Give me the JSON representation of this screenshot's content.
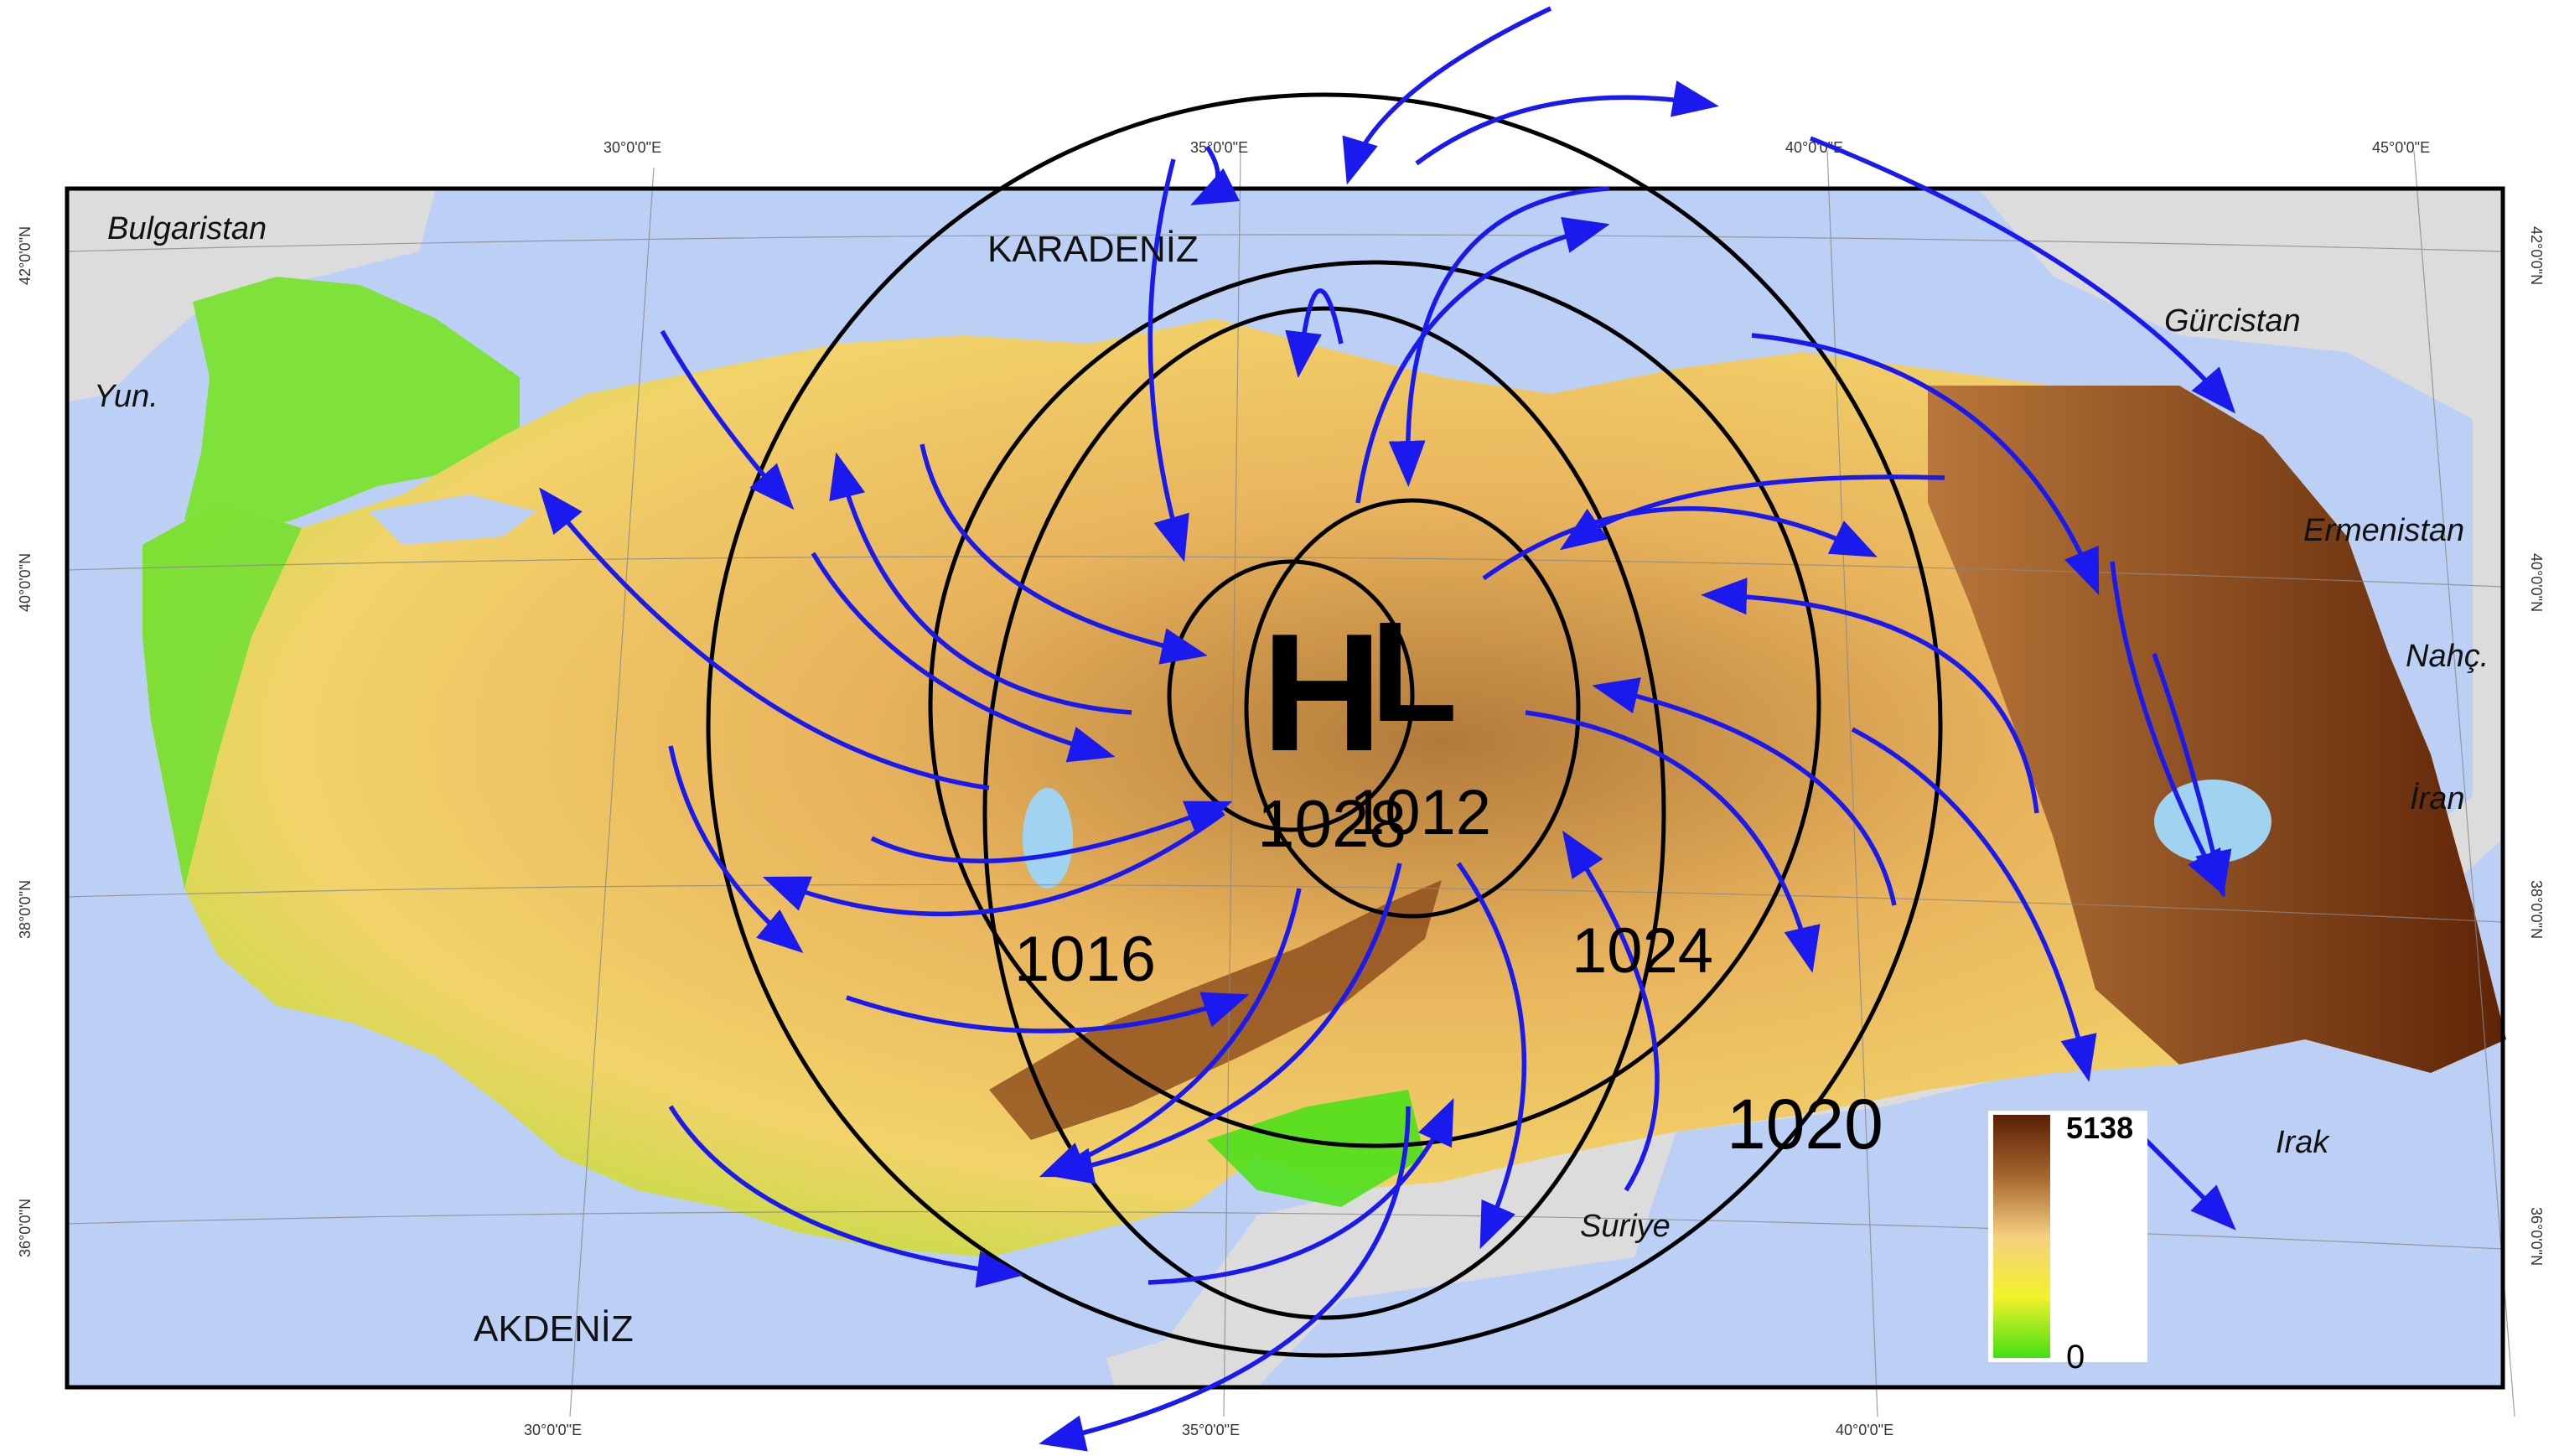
{
  "map": {
    "sea_labels": {
      "black_sea": "KARADENİZ",
      "mediterranean": "AKDENİZ"
    },
    "country_labels": {
      "bulgaria": "Bulgaristan",
      "greece": "Yun.",
      "georgia": "Gürcistan",
      "armenia": "Ermenistan",
      "nakhchivan": "Nahç.",
      "iran": "İran",
      "iraq": "Irak",
      "syria": "Suriye"
    },
    "pressure_centers": {
      "high": "H",
      "low": "L"
    },
    "isobar_labels": [
      "1028",
      "1012",
      "1016",
      "1024",
      "1020"
    ],
    "graticule": {
      "top_longitudes": [
        "30°0'0\"E",
        "35°0'0\"E",
        "40°0'0\"E",
        "45°0'0\"E"
      ],
      "bottom_longitudes": [
        "30°0'0\"E",
        "35°0'0\"E",
        "40°0'0\"E"
      ],
      "latitudes": [
        "42°0'0\"N",
        "40°0'0\"N",
        "38°0'0\"N",
        "36°0'0\"N"
      ]
    },
    "legend": {
      "max": "5138",
      "min": "0"
    },
    "colors": {
      "sea": "#bcd0f5",
      "neighbors": "#dcdcdc",
      "low_elevation": "#4ee01a",
      "mid_elevation": "#f6d76a",
      "high_elevation": "#6b2a0a",
      "arrows": "#1a1aee",
      "isobars": "#000000"
    }
  }
}
